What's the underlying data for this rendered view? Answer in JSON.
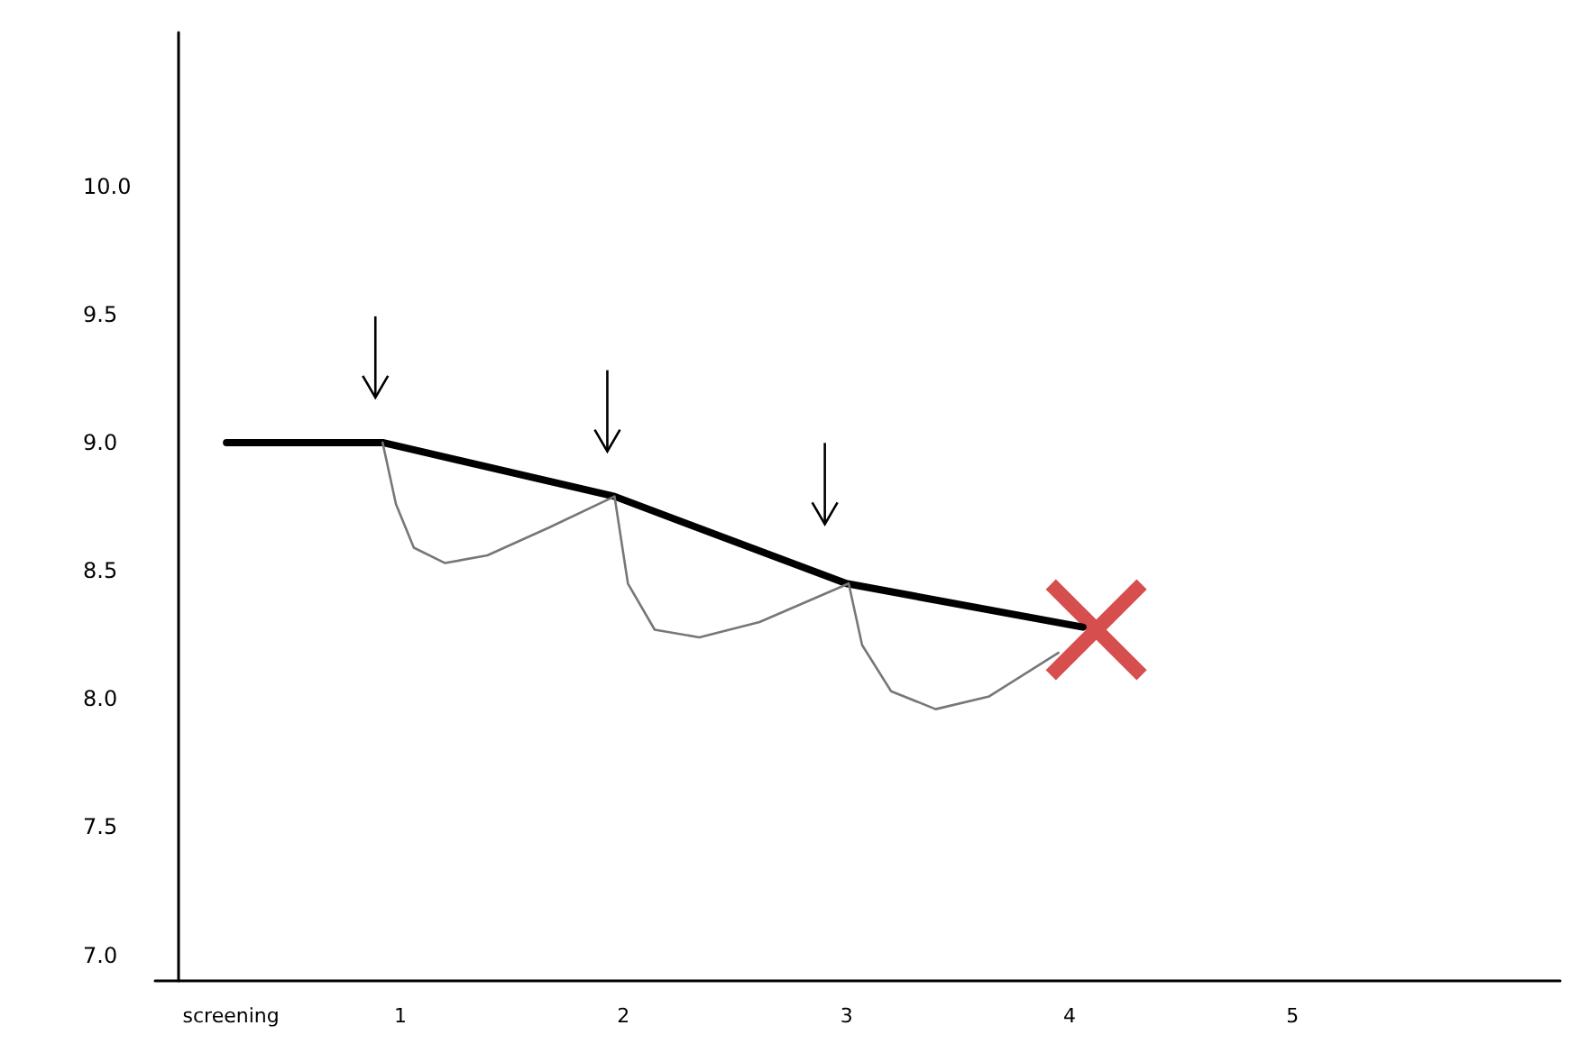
{
  "chart_data": {
    "type": "line",
    "xlim": [
      -0.1,
      6.2
    ],
    "xticks": [
      {
        "value": 0.24,
        "label": "screening"
      },
      1,
      2,
      3,
      4,
      5
    ],
    "ylim": [
      6.9,
      10.6
    ],
    "yticks": [
      {
        "value": 7,
        "label": "7.0"
      },
      {
        "value": 7.5,
        "label": "7.5"
      },
      {
        "value": 8,
        "label": "8.0"
      },
      {
        "value": 8.5,
        "label": "8.5"
      },
      {
        "value": 9,
        "label": "9.0"
      },
      {
        "value": 9.5,
        "label": "9.5"
      },
      {
        "value": 10,
        "label": "10.0"
      }
    ],
    "grid": false,
    "marker": "none",
    "line_style": "solid",
    "series": [
      {
        "color": "#000000",
        "x": [
          0.22,
          0.92,
          1.96,
          3.0,
          4.06
        ],
        "values": [
          9.0,
          9.0,
          8.79,
          8.45,
          8.28
        ]
      },
      {
        "color": "#777777",
        "x": [
          0.92,
          0.98,
          1.06,
          1.2,
          1.39,
          1.67,
          1.96,
          2.02,
          2.14,
          2.34,
          2.61,
          3.01,
          3.07,
          3.2,
          3.4,
          3.64,
          3.95
        ],
        "values": [
          9.0,
          8.76,
          8.59,
          8.53,
          8.56,
          8.67,
          8.79,
          8.45,
          8.27,
          8.24,
          8.3,
          8.45,
          8.21,
          8.03,
          7.96,
          8.01,
          8.18
        ]
      },
      {
        "type": "scatter",
        "marker": "cross",
        "color": "#cc2222",
        "x": [
          4.12
        ],
        "values": [
          8.27
        ]
      }
    ]
  }
}
